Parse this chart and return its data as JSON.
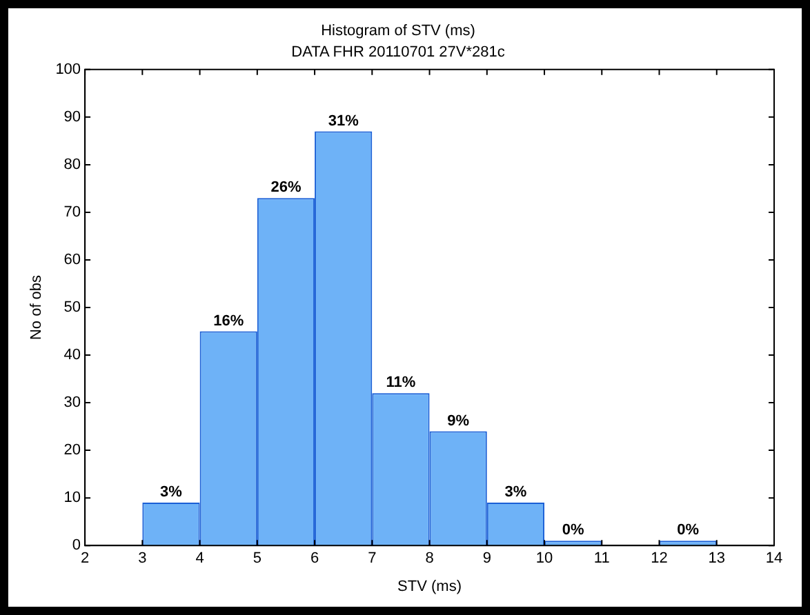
{
  "chart_data": {
    "type": "histogram",
    "title": "Histogram of STV (ms)",
    "subtitle": "DATA FHR 20110701 27V*281c",
    "xlabel": "STV (ms)",
    "ylabel": "No of obs",
    "bins": [
      2,
      3,
      4,
      5,
      6,
      7,
      8,
      9,
      10,
      11,
      12,
      13,
      14
    ],
    "values": [
      0,
      9,
      45,
      73,
      87,
      32,
      24,
      9,
      1,
      0,
      1,
      0
    ],
    "annotations": [
      "3%",
      "16%",
      "26%",
      "31%",
      "11%",
      "9%",
      "3%",
      "0%",
      "0%"
    ],
    "color": "#6eb2f7",
    "xlim": [
      2,
      14
    ],
    "xticks": [
      2,
      3,
      4,
      5,
      6,
      7,
      8,
      9,
      10,
      11,
      12,
      13,
      14
    ],
    "ylim": [
      0,
      100
    ],
    "yticks": [
      0,
      10,
      20,
      30,
      40,
      50,
      60,
      70,
      80,
      90,
      100
    ],
    "grid": false,
    "legend": false
  }
}
